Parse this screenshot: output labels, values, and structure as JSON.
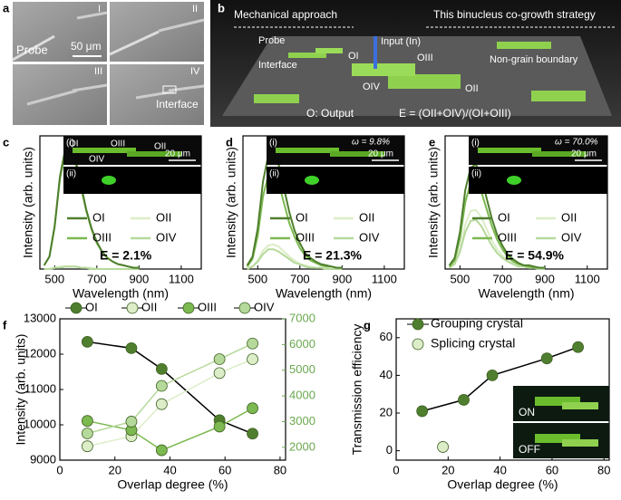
{
  "panel_a": {
    "label": "a",
    "images": [
      "I",
      "II",
      "III",
      "IV"
    ],
    "probe": "Probe",
    "scale_bar": "50 μm",
    "interface": "Interface"
  },
  "panel_b": {
    "label": "b",
    "left_arrow": "Mechanical approach",
    "right_arrow": "This binucleus co-growth strategy",
    "probe": "Probe",
    "interface": "Interface",
    "outputs": [
      "OI",
      "OIII",
      "OIV",
      "OII"
    ],
    "input": "Input (In)",
    "non_grain": "Non-grain boundary",
    "legend": "O: Output",
    "formula": "E = (OII+OIV)/(OI+OIII)"
  },
  "chart_data": [
    {
      "type": "line",
      "label": "c",
      "xlabel": "Wavelength (nm)",
      "ylabel": "Intensity (arb. units)",
      "xlim": [
        430,
        1195
      ],
      "ylim": [
        0,
        1.08
      ],
      "xticks": [
        500,
        700,
        900,
        1100
      ],
      "x": [
        450,
        475,
        500,
        525,
        550,
        575,
        600,
        625,
        650,
        675,
        700,
        725,
        750,
        775,
        800,
        825,
        850,
        875,
        900
      ],
      "series": [
        {
          "name": "OI",
          "color": "#4f7f2e",
          "values": [
            0.03,
            0.1,
            0.35,
            0.75,
            0.97,
            1.0,
            0.88,
            0.68,
            0.48,
            0.33,
            0.22,
            0.14,
            0.09,
            0.06,
            0.04,
            0.03,
            0.02,
            0.01,
            0.01
          ]
        },
        {
          "name": "OII",
          "color": "#dcedc8",
          "values": [
            0,
            0,
            0.01,
            0.02,
            0.02,
            0.02,
            0.02,
            0.01,
            0.01,
            0.01,
            0,
            0,
            0,
            0,
            0,
            0,
            0,
            0,
            0
          ]
        },
        {
          "name": "OIII",
          "color": "#7cb950",
          "values": [
            0.03,
            0.1,
            0.34,
            0.73,
            0.94,
            0.97,
            0.85,
            0.66,
            0.47,
            0.32,
            0.21,
            0.14,
            0.09,
            0.06,
            0.04,
            0.03,
            0.02,
            0.01,
            0.01
          ]
        },
        {
          "name": "OIV",
          "color": "#b5d99a",
          "values": [
            0,
            0,
            0.01,
            0.01,
            0.02,
            0.02,
            0.02,
            0.01,
            0.01,
            0,
            0,
            0,
            0,
            0,
            0,
            0,
            0,
            0,
            0
          ]
        }
      ],
      "annotation": "E = 2.1%",
      "inset": {
        "i": "(i)",
        "ii": "(ii)",
        "scale_bar": "20 μm",
        "tags": [
          "OI",
          "OIII",
          "OII",
          "OIV"
        ]
      }
    },
    {
      "type": "line",
      "label": "d",
      "xlabel": "Wavelength (nm)",
      "ylabel": "Intensity (arb. units)",
      "xlim": [
        430,
        1195
      ],
      "ylim": [
        0,
        1.08
      ],
      "xticks": [
        500,
        700,
        900,
        1100
      ],
      "x": [
        450,
        475,
        500,
        525,
        550,
        575,
        600,
        625,
        650,
        675,
        700,
        725,
        750,
        775,
        800,
        825,
        850,
        875,
        900
      ],
      "series": [
        {
          "name": "OI",
          "color": "#4f7f2e",
          "values": [
            0.03,
            0.1,
            0.33,
            0.71,
            0.92,
            0.95,
            0.84,
            0.65,
            0.46,
            0.31,
            0.21,
            0.13,
            0.09,
            0.06,
            0.04,
            0.03,
            0.02,
            0.01,
            0.01
          ]
        },
        {
          "name": "OII",
          "color": "#dcedc8",
          "values": [
            0.01,
            0.02,
            0.07,
            0.15,
            0.19,
            0.2,
            0.18,
            0.14,
            0.1,
            0.07,
            0.04,
            0.03,
            0.02,
            0.01,
            0.01,
            0.01,
            0,
            0,
            0
          ]
        },
        {
          "name": "OIII",
          "color": "#7cb950",
          "values": [
            0.02,
            0.08,
            0.27,
            0.59,
            0.76,
            0.78,
            0.69,
            0.53,
            0.37,
            0.26,
            0.17,
            0.11,
            0.07,
            0.05,
            0.03,
            0.02,
            0.02,
            0.01,
            0.01
          ]
        },
        {
          "name": "OIV",
          "color": "#b5d99a",
          "values": [
            0,
            0.02,
            0.06,
            0.12,
            0.16,
            0.16,
            0.14,
            0.11,
            0.08,
            0.05,
            0.04,
            0.02,
            0.01,
            0.01,
            0.01,
            0,
            0,
            0,
            0
          ]
        }
      ],
      "annotation": "E = 21.3%",
      "inset": {
        "i": "(i)",
        "ii": "(ii)",
        "scale_bar": "20 μm",
        "omega": "ω = 9.8%"
      }
    },
    {
      "type": "line",
      "label": "e",
      "xlabel": "Wavelength (nm)",
      "ylabel": "Intensity (arb. units)",
      "xlim": [
        430,
        1195
      ],
      "ylim": [
        0,
        1.08
      ],
      "xticks": [
        500,
        700,
        900,
        1100
      ],
      "x": [
        450,
        475,
        500,
        525,
        550,
        575,
        600,
        625,
        650,
        675,
        700,
        725,
        750,
        775,
        800,
        825,
        850,
        875,
        900
      ],
      "series": [
        {
          "name": "OI",
          "color": "#4f7f2e",
          "values": [
            0.03,
            0.09,
            0.3,
            0.64,
            0.82,
            0.85,
            0.75,
            0.58,
            0.41,
            0.28,
            0.19,
            0.12,
            0.08,
            0.05,
            0.03,
            0.03,
            0.02,
            0.01,
            0.01
          ]
        },
        {
          "name": "OII",
          "color": "#dcedc8",
          "values": [
            0.01,
            0.05,
            0.17,
            0.36,
            0.47,
            0.48,
            0.42,
            0.33,
            0.23,
            0.16,
            0.11,
            0.07,
            0.04,
            0.03,
            0.02,
            0.01,
            0.01,
            0,
            0
          ]
        },
        {
          "name": "OIII",
          "color": "#7cb950",
          "values": [
            0.02,
            0.07,
            0.25,
            0.54,
            0.7,
            0.72,
            0.63,
            0.49,
            0.35,
            0.24,
            0.16,
            0.1,
            0.06,
            0.04,
            0.03,
            0.02,
            0.01,
            0.01,
            0.01
          ]
        },
        {
          "name": "OIV",
          "color": "#b5d99a",
          "values": [
            0.01,
            0.04,
            0.14,
            0.3,
            0.39,
            0.4,
            0.35,
            0.27,
            0.19,
            0.13,
            0.09,
            0.06,
            0.04,
            0.02,
            0.02,
            0.01,
            0.01,
            0,
            0
          ]
        }
      ],
      "annotation": "E = 54.9%",
      "inset": {
        "i": "(i)",
        "ii": "(ii)",
        "scale_bar": "20 μm",
        "omega": "ω = 70.0%"
      }
    },
    {
      "type": "line",
      "label": "f",
      "markers": true,
      "xlabel": "Overlap degree (%)",
      "ylabel": "Intensity (arb. units)",
      "xlim": [
        0,
        82
      ],
      "xticks": [
        0,
        20,
        40,
        60,
        80
      ],
      "ylim": [
        9000,
        13000
      ],
      "yticks": [
        9000,
        10000,
        11000,
        12000,
        13000
      ],
      "y2lim": [
        1500,
        7000
      ],
      "y2ticks": [
        2000,
        3000,
        4000,
        5000,
        6000,
        7000
      ],
      "y2color": "#6aa84f",
      "x": [
        10,
        26,
        37,
        58,
        70
      ],
      "series": [
        {
          "name": "OI",
          "color": "#4f7f2e",
          "line_color": "#000000",
          "values": [
            12350,
            12170,
            11580,
            10130,
            9750
          ]
        },
        {
          "name": "OII",
          "color": "#dcedc8",
          "axis": "y2",
          "values": [
            2040,
            2430,
            3680,
            4890,
            5430
          ]
        },
        {
          "name": "OIII",
          "color": "#7cb950",
          "values": [
            10110,
            9850,
            9280,
            9950,
            10470
          ]
        },
        {
          "name": "OIV",
          "color": "#b5d99a",
          "axis": "y2",
          "values": [
            2540,
            3000,
            4390,
            5430,
            6040
          ]
        }
      ]
    },
    {
      "type": "line",
      "label": "g",
      "markers": true,
      "xlabel": "Overlap degree (%)",
      "ylabel": "Transmission efficiency",
      "xlim": [
        0,
        82
      ],
      "xticks": [
        0,
        20,
        40,
        60,
        80
      ],
      "ylim": [
        -5,
        70
      ],
      "yticks": [
        0,
        20,
        40,
        60
      ],
      "x": [
        10,
        26,
        37,
        58,
        70
      ],
      "series": [
        {
          "name": "Grouping crystal",
          "color": "#4f7f2e",
          "line_color": "#000000",
          "values": [
            21,
            27,
            40,
            49,
            55
          ]
        },
        {
          "name": "Splicing crystal",
          "color": "#dcedc8",
          "x": [
            18
          ],
          "values": [
            2
          ]
        }
      ],
      "insets": [
        "ON",
        "OFF"
      ]
    }
  ]
}
